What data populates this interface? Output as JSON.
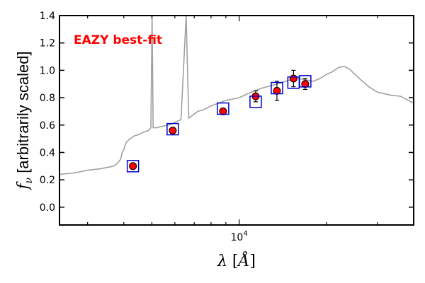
{
  "chart_data": {
    "type": "scatter",
    "title": "",
    "xlabel": "λ [Å]",
    "ylabel": "f_ν [arbitrarily scaled]",
    "xscale": "log",
    "xlim": [
      2400,
      40000
    ],
    "ylim": [
      -0.13,
      1.4
    ],
    "yticks": [
      0.0,
      0.2,
      0.4,
      0.6,
      0.8,
      1.0,
      1.2,
      1.4
    ],
    "ytick_labels": [
      "0.0",
      "0.2",
      "0.4",
      "0.6",
      "0.8",
      "1.0",
      "1.2",
      "1.4"
    ],
    "xtick_labels": [
      {
        "value": 10000,
        "base": "10",
        "exp": "4"
      }
    ],
    "grid": false,
    "annotation": {
      "text": "EAZY best-fit",
      "color": "#ff0000"
    },
    "colors": {
      "model": "#a0a0a0",
      "observed": "#ff0000",
      "template": "#0000cc"
    },
    "series": [
      {
        "kind": "line",
        "color": "#a0a0a0",
        "x": [
          2400,
          2700,
          3000,
          3300,
          3500,
          3700,
          3800,
          3900,
          3950,
          4000,
          4050,
          4100,
          4200,
          4340,
          4500,
          4700,
          4861,
          4960,
          5007,
          5050,
          5200,
          5400,
          5700,
          5900,
          6000,
          6300,
          6563,
          6700,
          6900,
          7200,
          7500,
          8000,
          8500,
          9000,
          9500,
          10000,
          11000,
          12000,
          13000,
          14000,
          15000,
          16000,
          17000,
          18000,
          19000,
          20000,
          21000,
          22000,
          23000,
          24000,
          26000,
          28000,
          30000,
          33000,
          36000,
          40000
        ],
        "y": [
          0.24,
          0.25,
          0.27,
          0.28,
          0.29,
          0.3,
          0.32,
          0.35,
          0.4,
          0.42,
          0.46,
          0.48,
          0.5,
          0.52,
          0.53,
          0.55,
          0.56,
          0.58,
          1.4,
          0.58,
          0.58,
          0.59,
          0.6,
          0.61,
          0.62,
          0.64,
          1.4,
          0.65,
          0.67,
          0.7,
          0.71,
          0.74,
          0.76,
          0.78,
          0.79,
          0.8,
          0.84,
          0.87,
          0.89,
          0.91,
          0.93,
          0.94,
          0.93,
          0.92,
          0.94,
          0.97,
          0.99,
          1.02,
          1.03,
          1.01,
          0.94,
          0.88,
          0.84,
          0.82,
          0.81,
          0.76
        ]
      },
      {
        "kind": "points",
        "color": "#ff0000",
        "x": [
          4300,
          5900,
          8800,
          11400,
          13500,
          15400,
          16900
        ],
        "y": [
          0.3,
          0.56,
          0.7,
          0.81,
          0.85,
          0.94,
          0.9
        ],
        "err": [
          0.0,
          0.0,
          0.0,
          0.04,
          0.07,
          0.06,
          0.04
        ]
      },
      {
        "kind": "boxes",
        "color": "#0000cc",
        "x": [
          4300,
          5900,
          8800,
          11400,
          13500,
          15400,
          16900
        ],
        "y": [
          0.3,
          0.57,
          0.72,
          0.77,
          0.87,
          0.91,
          0.92
        ]
      }
    ]
  }
}
